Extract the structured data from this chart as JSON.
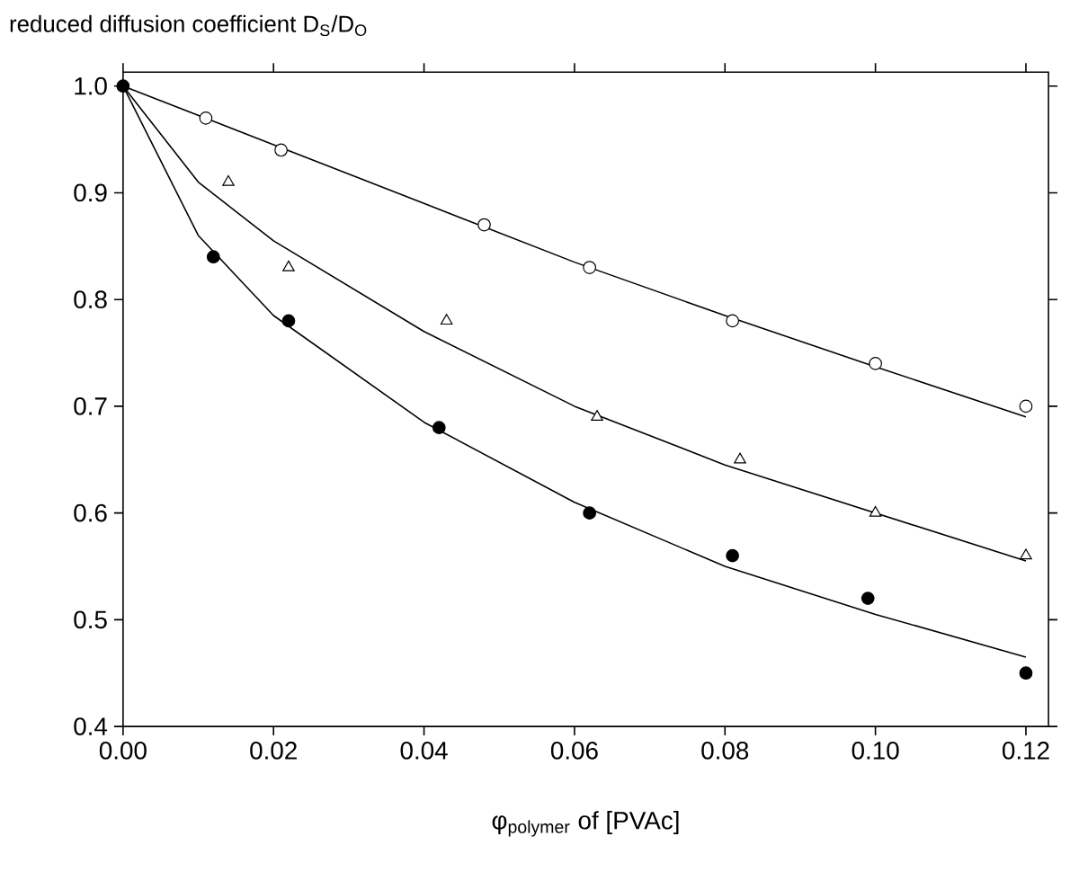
{
  "chart_data": {
    "type": "scatter",
    "annotations": [
      "reduced diffusion coefficient  D$_{S}$/D$_{O}$"
    ],
    "xlabel": "φ$_{polymer}$ of [PVAc]",
    "xlim": [
      0,
      0.123
    ],
    "ylim": [
      0.4,
      1.013
    ],
    "xticks": [
      {
        "value": 0,
        "label": "0.00"
      },
      {
        "value": 0.02,
        "label": "0.02"
      },
      {
        "value": 0.04,
        "label": "0.04"
      },
      {
        "value": 0.06,
        "label": "0.06"
      },
      {
        "value": 0.08,
        "label": "0.08"
      },
      {
        "value": 0.1,
        "label": "0.10"
      },
      {
        "value": 0.12,
        "label": "0.12"
      }
    ],
    "yticks": [
      {
        "value": 0.4,
        "label": "0.4"
      },
      {
        "value": 0.5,
        "label": "0.5"
      },
      {
        "value": 0.6,
        "label": "0.6"
      },
      {
        "value": 0.7,
        "label": "0.7"
      },
      {
        "value": 0.8,
        "label": "0.8"
      },
      {
        "value": 0.9,
        "label": "0.9"
      },
      {
        "value": 1.0,
        "label": "1.0"
      }
    ],
    "grid": false,
    "series": [
      {
        "type": "line",
        "color": "#000000",
        "marker": "none",
        "x": [
          0,
          0.02,
          0.04,
          0.06,
          0.08,
          0.1,
          0.12
        ],
        "values": [
          1,
          0.945,
          0.89,
          0.835,
          0.785,
          0.737,
          0.69
        ]
      },
      {
        "type": "line",
        "color": "#000000",
        "marker": "none",
        "x": [
          0,
          0.01,
          0.02,
          0.04,
          0.06,
          0.08,
          0.1,
          0.12
        ],
        "values": [
          1,
          0.91,
          0.855,
          0.77,
          0.7,
          0.645,
          0.6,
          0.555
        ]
      },
      {
        "type": "line",
        "color": "#000000",
        "marker": "none",
        "x": [
          0,
          0.01,
          0.02,
          0.04,
          0.06,
          0.08,
          0.1,
          0.12
        ],
        "values": [
          1,
          0.86,
          0.785,
          0.685,
          0.61,
          0.55,
          0.505,
          0.465
        ]
      },
      {
        "color": "#ffffff",
        "marker": "circle",
        "x": [
          0.011,
          0.021,
          0.048,
          0.062,
          0.081,
          0.1,
          0.12
        ],
        "values": [
          0.97,
          0.94,
          0.87,
          0.83,
          0.78,
          0.74,
          0.7
        ]
      },
      {
        "color": "#ffffff",
        "marker": "triangle",
        "x": [
          0.014,
          0.022,
          0.043,
          0.063,
          0.082,
          0.1,
          0.12
        ],
        "values": [
          0.91,
          0.83,
          0.78,
          0.69,
          0.65,
          0.6,
          0.56
        ]
      },
      {
        "color": "#000000",
        "marker": "circle",
        "x": [
          0,
          0.012,
          0.022,
          0.042,
          0.062,
          0.081,
          0.099,
          0.12
        ],
        "values": [
          1,
          0.84,
          0.78,
          0.68,
          0.6,
          0.56,
          0.52,
          0.45
        ]
      }
    ]
  }
}
